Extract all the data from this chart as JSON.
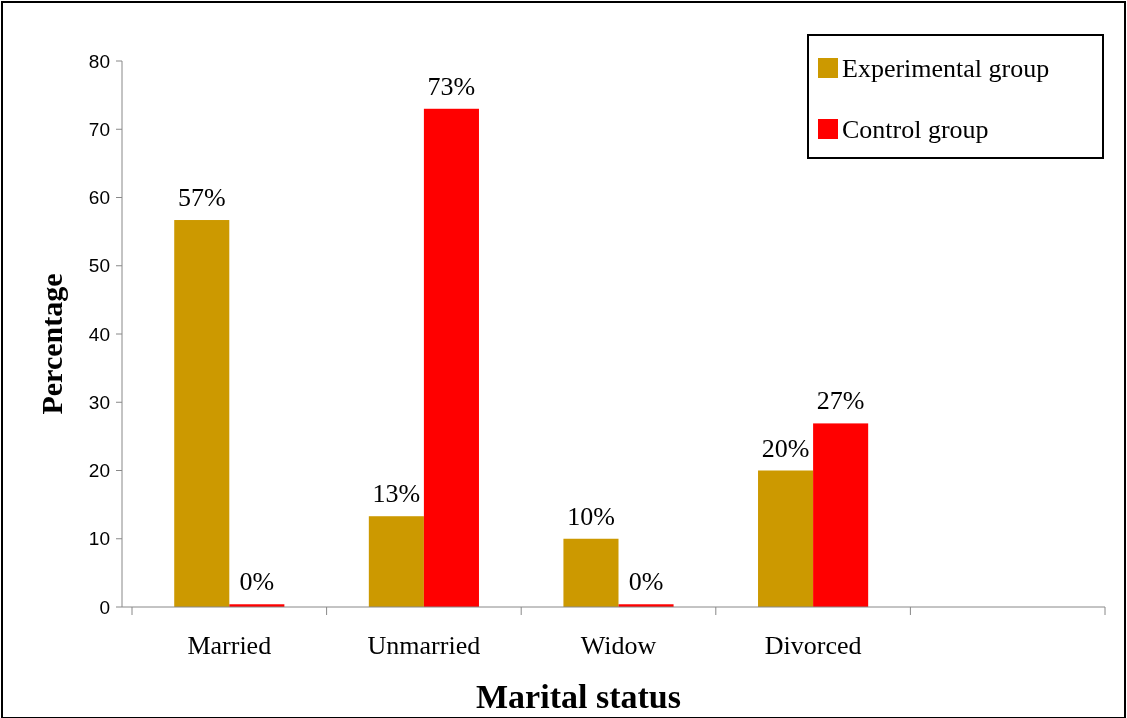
{
  "chart_data": {
    "type": "bar",
    "xlabel": "Marital status",
    "ylabel": "Percentage",
    "categories": [
      "Married",
      "Unmarried",
      "Widow",
      "Divorced",
      null
    ],
    "series": [
      {
        "name": "Experimental group",
        "color": "#cc9900",
        "values": [
          56.7,
          13.3,
          10,
          20,
          null
        ],
        "value_labels": [
          "57%",
          "13%",
          "10%",
          "20%",
          null
        ]
      },
      {
        "name": "Control group",
        "color": "#ff0000",
        "values": [
          0.4,
          73,
          0.4,
          26.9,
          null
        ],
        "value_labels": [
          "0%",
          "73%",
          "0%",
          "27%",
          null
        ]
      }
    ],
    "ylim": [
      0,
      80
    ],
    "yticks": [
      0,
      10,
      20,
      30,
      40,
      50,
      60,
      70,
      80
    ],
    "grid": false,
    "legend": "top right"
  }
}
